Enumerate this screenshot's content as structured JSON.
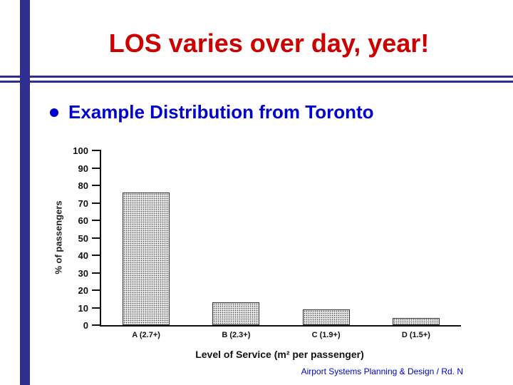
{
  "slide": {
    "title": "LOS varies over day, year!",
    "bullet_text": "Example Distribution from Toronto",
    "footer": "Airport Systems Planning & Design / Rd. N"
  },
  "colors": {
    "title_red": "#cc0000",
    "text_blue": "#0000cc",
    "accent_navy": "#2e2e8f",
    "axis_ink": "#111111",
    "bar_fill": "#e9e9e9",
    "bar_dot": "#555555"
  },
  "chart_data": {
    "type": "bar",
    "categories": [
      "A (2.7+)",
      "B (2.3+)",
      "C (1.9+)",
      "D (1.5+)"
    ],
    "values": [
      76,
      13,
      9,
      4
    ],
    "title": "",
    "xlabel": "Level of Service (m² per passenger)",
    "ylabel": "% of passengers",
    "ylim": [
      0,
      100
    ],
    "yticks": [
      0,
      10,
      20,
      30,
      40,
      50,
      60,
      70,
      80,
      90,
      100
    ],
    "grid": false,
    "legend": false
  }
}
